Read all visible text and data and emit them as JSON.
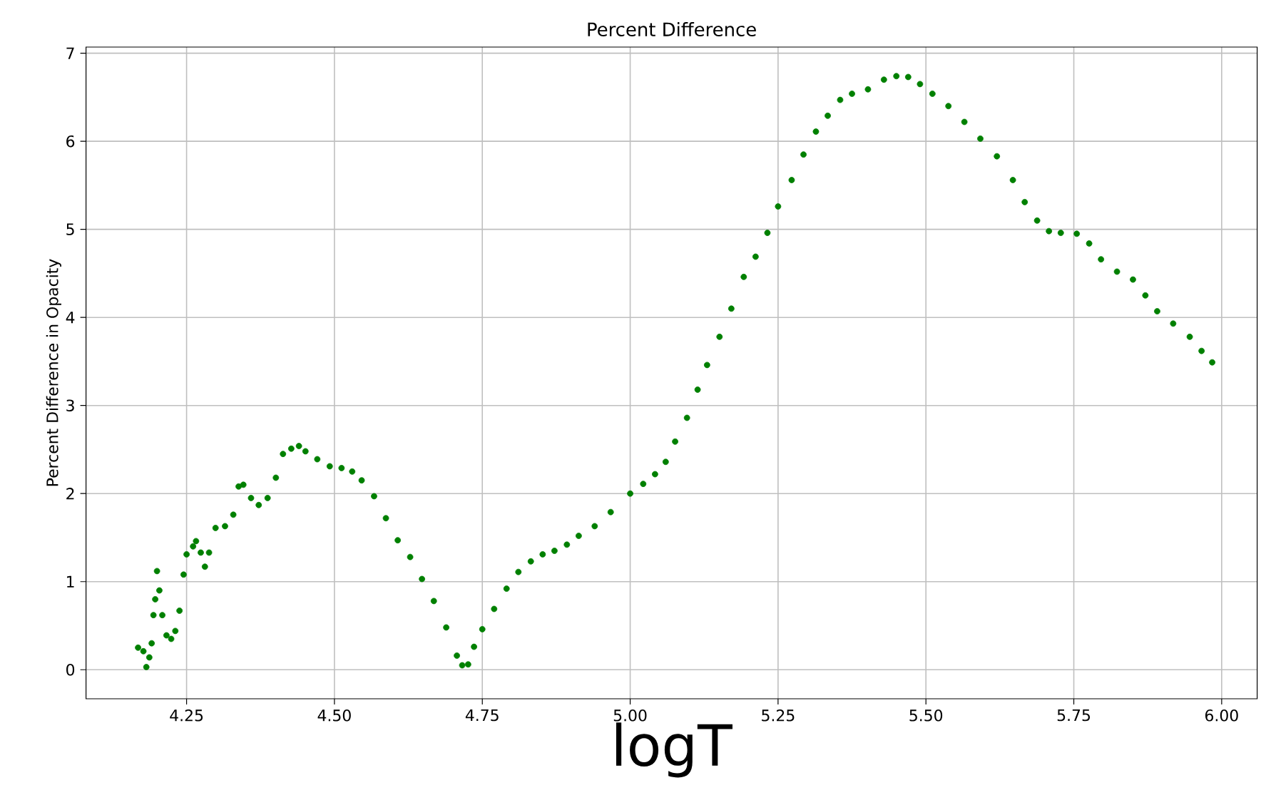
{
  "chart_data": {
    "type": "scatter",
    "title": "Percent Difference",
    "xlabel": "logT",
    "ylabel": "Percent Difference in Opacity",
    "x": [
      4.168,
      4.177,
      4.182,
      4.187,
      4.191,
      4.194,
      4.197,
      4.2,
      4.204,
      4.209,
      4.216,
      4.224,
      4.231,
      4.238,
      4.245,
      4.25,
      4.261,
      4.266,
      4.274,
      4.281,
      4.288,
      4.299,
      4.315,
      4.329,
      4.338,
      4.346,
      4.359,
      4.372,
      4.387,
      4.401,
      4.413,
      4.427,
      4.44,
      4.451,
      4.471,
      4.492,
      4.512,
      4.53,
      4.546,
      4.567,
      4.587,
      4.607,
      4.628,
      4.648,
      4.668,
      4.689,
      4.707,
      4.716,
      4.726,
      4.736,
      4.75,
      4.77,
      4.791,
      4.811,
      4.832,
      4.852,
      4.872,
      4.893,
      4.913,
      4.94,
      4.967,
      5.0,
      5.022,
      5.042,
      5.06,
      5.076,
      5.096,
      5.114,
      5.13,
      5.151,
      5.171,
      5.192,
      5.212,
      5.232,
      5.25,
      5.273,
      5.293,
      5.314,
      5.334,
      5.355,
      5.375,
      5.402,
      5.429,
      5.45,
      5.47,
      5.49,
      5.511,
      5.538,
      5.565,
      5.592,
      5.62,
      5.647,
      5.667,
      5.688,
      5.708,
      5.728,
      5.755,
      5.776,
      5.796,
      5.823,
      5.85,
      5.871,
      5.891,
      5.918,
      5.946,
      5.966,
      5.984
    ],
    "values": [
      0.25,
      0.21,
      0.03,
      0.14,
      0.3,
      0.62,
      0.8,
      1.12,
      0.9,
      0.62,
      0.39,
      0.35,
      0.44,
      0.67,
      1.08,
      1.31,
      1.4,
      1.46,
      1.33,
      1.17,
      1.33,
      1.61,
      1.63,
      1.76,
      2.08,
      2.1,
      1.95,
      1.87,
      1.95,
      2.18,
      2.45,
      2.51,
      2.54,
      2.48,
      2.39,
      2.31,
      2.29,
      2.25,
      2.15,
      1.97,
      1.72,
      1.47,
      1.28,
      1.03,
      0.78,
      0.48,
      0.16,
      0.05,
      0.06,
      0.26,
      0.46,
      0.69,
      0.92,
      1.11,
      1.23,
      1.31,
      1.35,
      1.42,
      1.52,
      1.63,
      1.79,
      2.0,
      2.11,
      2.22,
      2.36,
      2.59,
      2.86,
      3.18,
      3.46,
      3.78,
      4.1,
      4.46,
      4.69,
      4.96,
      5.26,
      5.56,
      5.85,
      6.11,
      6.29,
      6.47,
      6.54,
      6.59,
      6.7,
      6.74,
      6.73,
      6.65,
      6.54,
      6.4,
      6.22,
      6.03,
      5.83,
      5.56,
      5.31,
      5.1,
      4.98,
      4.96,
      4.95,
      4.84,
      4.66,
      4.52,
      4.43,
      4.25,
      4.07,
      3.93,
      3.78,
      3.62,
      3.49
    ],
    "color": "#008000",
    "grid": true,
    "xlim": [
      4.08,
      6.06
    ],
    "ylim": [
      -0.33,
      7.07
    ],
    "xticks": [
      {
        "value": 4.25,
        "label": "4.25"
      },
      {
        "value": 4.5,
        "label": "4.50"
      },
      {
        "value": 4.75,
        "label": "4.75"
      },
      {
        "value": 5.0,
        "label": "5.00"
      },
      {
        "value": 5.25,
        "label": "5.25"
      },
      {
        "value": 5.5,
        "label": "5.50"
      },
      {
        "value": 5.75,
        "label": "5.75"
      },
      {
        "value": 6.0,
        "label": "6.00"
      }
    ],
    "yticks": [
      0,
      1,
      2,
      3,
      4,
      5,
      6,
      7
    ]
  }
}
